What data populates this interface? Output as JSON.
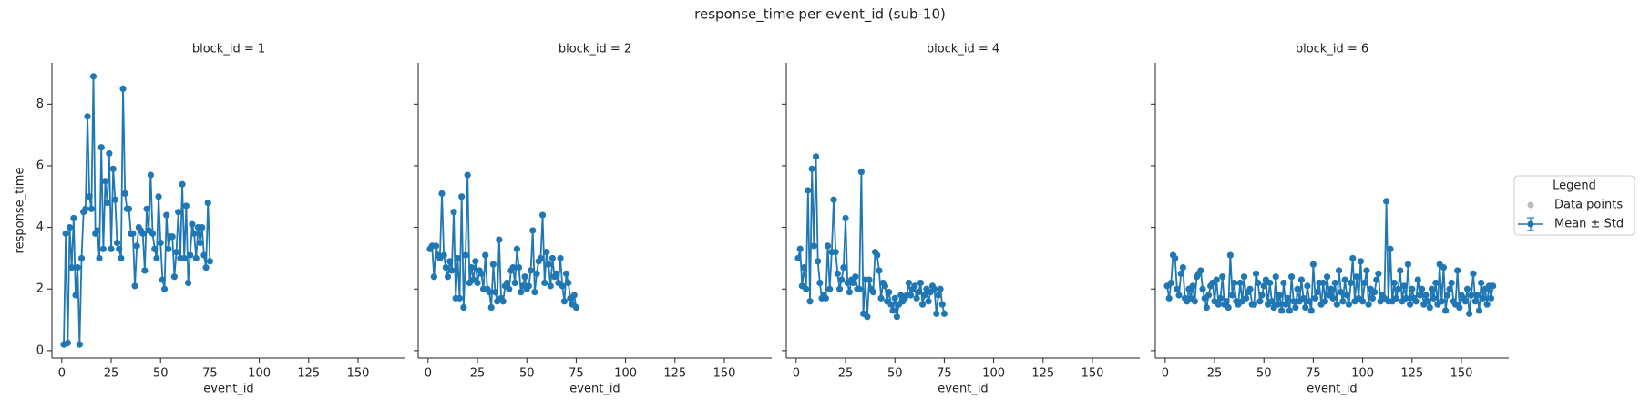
{
  "title": "response_time per event_id (sub-10)",
  "legend": {
    "title": "Legend",
    "entries": [
      {
        "name": "Data points",
        "color": "#bbbbbb"
      },
      {
        "name": "Mean ± Std",
        "color": "#1f77b4"
      }
    ]
  },
  "chart_data": [
    {
      "type": "line",
      "title": "block_id = 1",
      "x_label": "event_id",
      "y_label": "response_time",
      "color": "#1f77b4",
      "xlim": [
        -5,
        174
      ],
      "ylim": [
        -0.24,
        9.34
      ],
      "xticks": [
        0,
        25,
        50,
        75,
        100,
        125,
        150
      ],
      "yticks": [
        0,
        2,
        4,
        6,
        8
      ],
      "x": [
        1,
        2,
        3,
        4,
        5,
        6,
        7,
        8,
        9,
        10,
        11,
        12,
        13,
        14,
        15,
        16,
        17,
        18,
        19,
        20,
        21,
        22,
        23,
        24,
        25,
        26,
        27,
        28,
        29,
        30,
        31,
        32,
        33,
        34,
        35,
        36,
        37,
        38,
        39,
        40,
        41,
        42,
        43,
        44,
        45,
        46,
        47,
        48,
        49,
        50,
        51,
        52,
        53,
        54,
        55,
        56,
        57,
        58,
        59,
        60,
        61,
        62,
        63,
        64,
        65,
        66,
        67,
        68,
        69,
        70,
        71,
        72,
        73,
        74,
        75
      ],
      "values": [
        0.2,
        3.8,
        0.25,
        4.0,
        2.7,
        4.3,
        1.8,
        2.7,
        0.2,
        3.0,
        4.5,
        4.6,
        7.6,
        5.0,
        4.6,
        8.9,
        3.8,
        3.9,
        3.0,
        6.6,
        3.3,
        5.5,
        4.8,
        6.4,
        3.3,
        5.9,
        4.9,
        3.5,
        3.3,
        3.0,
        8.5,
        5.1,
        4.6,
        4.6,
        3.8,
        3.8,
        2.1,
        3.4,
        4.0,
        3.9,
        3.8,
        2.6,
        4.6,
        3.9,
        5.7,
        3.8,
        3.3,
        3.0,
        5.0,
        3.5,
        2.3,
        2.0,
        4.4,
        3.3,
        3.7,
        3.7,
        2.4,
        3.2,
        4.5,
        3.0,
        5.4,
        3.0,
        4.7,
        2.2,
        3.1,
        4.1,
        3.8,
        3.0,
        4.0,
        3.5,
        4.0,
        3.1,
        2.7,
        4.8,
        2.9
      ]
    },
    {
      "type": "line",
      "title": "block_id = 2",
      "x_label": "event_id",
      "color": "#1f77b4",
      "xlim": [
        -5,
        174
      ],
      "ylim": [
        -0.24,
        9.34
      ],
      "xticks": [
        0,
        25,
        50,
        75,
        100,
        125,
        150
      ],
      "yticks": [
        0,
        2,
        4,
        6,
        8
      ],
      "x": [
        1,
        2,
        3,
        4,
        5,
        6,
        7,
        8,
        9,
        10,
        11,
        12,
        13,
        14,
        15,
        16,
        17,
        18,
        19,
        20,
        21,
        22,
        23,
        24,
        25,
        26,
        27,
        28,
        29,
        30,
        31,
        32,
        33,
        34,
        35,
        36,
        37,
        38,
        39,
        40,
        41,
        42,
        43,
        44,
        45,
        46,
        47,
        48,
        49,
        50,
        51,
        52,
        53,
        54,
        55,
        56,
        57,
        58,
        59,
        60,
        61,
        62,
        63,
        64,
        65,
        66,
        67,
        68,
        69,
        70,
        71,
        72,
        73,
        74,
        75
      ],
      "values": [
        3.3,
        3.4,
        2.4,
        3.4,
        3.1,
        3.0,
        5.1,
        3.1,
        2.7,
        2.4,
        2.9,
        2.6,
        4.5,
        1.7,
        3.0,
        1.7,
        5.0,
        1.4,
        3.1,
        5.7,
        2.2,
        2.7,
        2.3,
        2.9,
        2.2,
        2.6,
        2.5,
        2.0,
        3.1,
        2.0,
        1.9,
        1.4,
        2.8,
        1.9,
        1.6,
        3.6,
        1.7,
        1.6,
        2.1,
        2.2,
        2.0,
        2.6,
        2.7,
        2.2,
        3.3,
        2.7,
        1.9,
        2.1,
        2.4,
        2.0,
        2.1,
        2.6,
        3.9,
        1.9,
        2.5,
        2.9,
        3.0,
        4.4,
        2.2,
        3.2,
        2.8,
        2.1,
        3.0,
        2.4,
        2.5,
        2.2,
        3.0,
        2.1,
        1.6,
        2.5,
        2.2,
        1.7,
        1.5,
        1.8,
        1.4
      ]
    },
    {
      "type": "line",
      "title": "block_id = 4",
      "x_label": "event_id",
      "color": "#1f77b4",
      "xlim": [
        -5,
        174
      ],
      "ylim": [
        -0.24,
        9.34
      ],
      "xticks": [
        0,
        25,
        50,
        75,
        100,
        125,
        150
      ],
      "yticks": [
        0,
        2,
        4,
        6,
        8
      ],
      "x": [
        1,
        2,
        3,
        4,
        5,
        6,
        7,
        8,
        9,
        10,
        11,
        12,
        13,
        14,
        15,
        16,
        17,
        18,
        19,
        20,
        21,
        22,
        23,
        24,
        25,
        26,
        27,
        28,
        29,
        30,
        31,
        32,
        33,
        34,
        35,
        36,
        37,
        38,
        39,
        40,
        41,
        42,
        43,
        44,
        45,
        46,
        47,
        48,
        49,
        50,
        51,
        52,
        53,
        54,
        55,
        56,
        57,
        58,
        59,
        60,
        61,
        62,
        63,
        64,
        65,
        66,
        67,
        68,
        69,
        70,
        71,
        72,
        73,
        74,
        75
      ],
      "values": [
        3.0,
        3.3,
        2.1,
        2.7,
        2.0,
        5.2,
        1.6,
        5.9,
        3.4,
        6.3,
        2.9,
        2.2,
        1.7,
        1.8,
        1.7,
        3.4,
        2.0,
        3.2,
        4.9,
        3.2,
        2.5,
        2.0,
        2.3,
        2.7,
        4.3,
        2.2,
        1.9,
        2.3,
        2.2,
        2.4,
        2.0,
        2.0,
        5.8,
        1.2,
        2.3,
        1.1,
        2.3,
        2.0,
        1.9,
        3.2,
        3.1,
        2.6,
        1.7,
        2.2,
        2.1,
        1.6,
        1.9,
        1.5,
        1.3,
        1.7,
        1.1,
        1.5,
        1.8,
        1.6,
        1.7,
        1.8,
        2.2,
        1.8,
        2.0,
        2.1,
        1.7,
        1.9,
        2.2,
        1.5,
        1.8,
        2.0,
        1.6,
        1.9,
        2.1,
        2.0,
        1.2,
        1.8,
        2.0,
        1.5,
        1.2
      ]
    },
    {
      "type": "line",
      "title": "block_id = 6",
      "x_label": "event_id",
      "color": "#1f77b4",
      "xlim": [
        -5,
        174
      ],
      "ylim": [
        -0.24,
        9.34
      ],
      "xticks": [
        0,
        25,
        50,
        75,
        100,
        125,
        150
      ],
      "yticks": [
        0,
        2,
        4,
        6,
        8
      ],
      "x": [
        1,
        2,
        3,
        4,
        5,
        6,
        7,
        8,
        9,
        10,
        11,
        12,
        13,
        14,
        15,
        16,
        17,
        18,
        19,
        20,
        21,
        22,
        23,
        24,
        25,
        26,
        27,
        28,
        29,
        30,
        31,
        32,
        33,
        34,
        35,
        36,
        37,
        38,
        39,
        40,
        41,
        42,
        43,
        44,
        45,
        46,
        47,
        48,
        49,
        50,
        51,
        52,
        53,
        54,
        55,
        56,
        57,
        58,
        59,
        60,
        61,
        62,
        63,
        64,
        65,
        66,
        67,
        68,
        69,
        70,
        71,
        72,
        73,
        74,
        75,
        76,
        77,
        78,
        79,
        80,
        81,
        82,
        83,
        84,
        85,
        86,
        87,
        88,
        89,
        90,
        91,
        92,
        93,
        94,
        95,
        96,
        97,
        98,
        99,
        100,
        101,
        102,
        103,
        104,
        105,
        106,
        107,
        108,
        109,
        110,
        111,
        112,
        113,
        114,
        115,
        116,
        117,
        118,
        119,
        120,
        121,
        122,
        123,
        124,
        125,
        126,
        127,
        128,
        129,
        130,
        131,
        132,
        133,
        134,
        135,
        136,
        137,
        138,
        139,
        140,
        141,
        142,
        143,
        144,
        145,
        146,
        147,
        148,
        149,
        150,
        151,
        152,
        153,
        154,
        155,
        156,
        157,
        158,
        159,
        160,
        161,
        162,
        163,
        164,
        165,
        166
      ],
      "values": [
        2.1,
        1.7,
        2.2,
        3.1,
        3.0,
        2.0,
        1.8,
        2.5,
        2.7,
        1.7,
        1.6,
        2.0,
        1.7,
        2.1,
        1.6,
        2.4,
        2.5,
        2.6,
        2.0,
        1.7,
        1.4,
        1.8,
        2.1,
        2.2,
        1.6,
        2.3,
        1.5,
        1.7,
        2.4,
        1.5,
        1.6,
        1.4,
        3.1,
        1.8,
        2.2,
        1.6,
        1.5,
        2.2,
        1.6,
        2.4,
        1.7,
        1.9,
        2.0,
        1.5,
        1.5,
        2.5,
        2.2,
        1.6,
        1.8,
        2.1,
        2.3,
        1.5,
        2.2,
        1.6,
        1.4,
        2.4,
        1.5,
        1.8,
        1.3,
        2.2,
        1.5,
        1.7,
        1.3,
        2.4,
        1.6,
        1.4,
        2.0,
        1.6,
        2.3,
        1.7,
        1.4,
        2.1,
        1.6,
        1.3,
        2.8,
        1.7,
        1.9,
        2.2,
        1.5,
        2.2,
        1.6,
        2.4,
        1.8,
        2.0,
        1.7,
        2.2,
        1.5,
        2.6,
        1.9,
        1.6,
        2.3,
        1.8,
        1.5,
        2.2,
        3.0,
        1.6,
        2.4,
        1.7,
        2.9,
        1.6,
        2.2,
        2.6,
        1.5,
        2.0,
        1.7,
        1.9,
        2.3,
        2.5,
        1.6,
        1.8,
        1.7,
        4.85,
        1.6,
        3.3,
        1.6,
        2.2,
        1.7,
        2.0,
        2.6,
        1.6,
        2.1,
        1.7,
        2.8,
        1.5,
        2.0,
        1.7,
        1.6,
        2.3,
        1.8,
        2.0,
        1.5,
        1.8,
        1.6,
        1.4,
        2.0,
        1.7,
        2.2,
        1.5,
        2.8,
        1.6,
        2.7,
        1.3,
        1.8,
        2.0,
        2.2,
        1.6,
        1.5,
        2.6,
        1.4,
        1.8,
        1.7,
        1.6,
        2.0,
        1.2,
        1.8,
        2.5,
        1.6,
        1.8,
        1.3,
        2.2,
        1.7,
        2.0,
        1.5,
        2.1,
        1.7,
        2.1
      ]
    }
  ]
}
